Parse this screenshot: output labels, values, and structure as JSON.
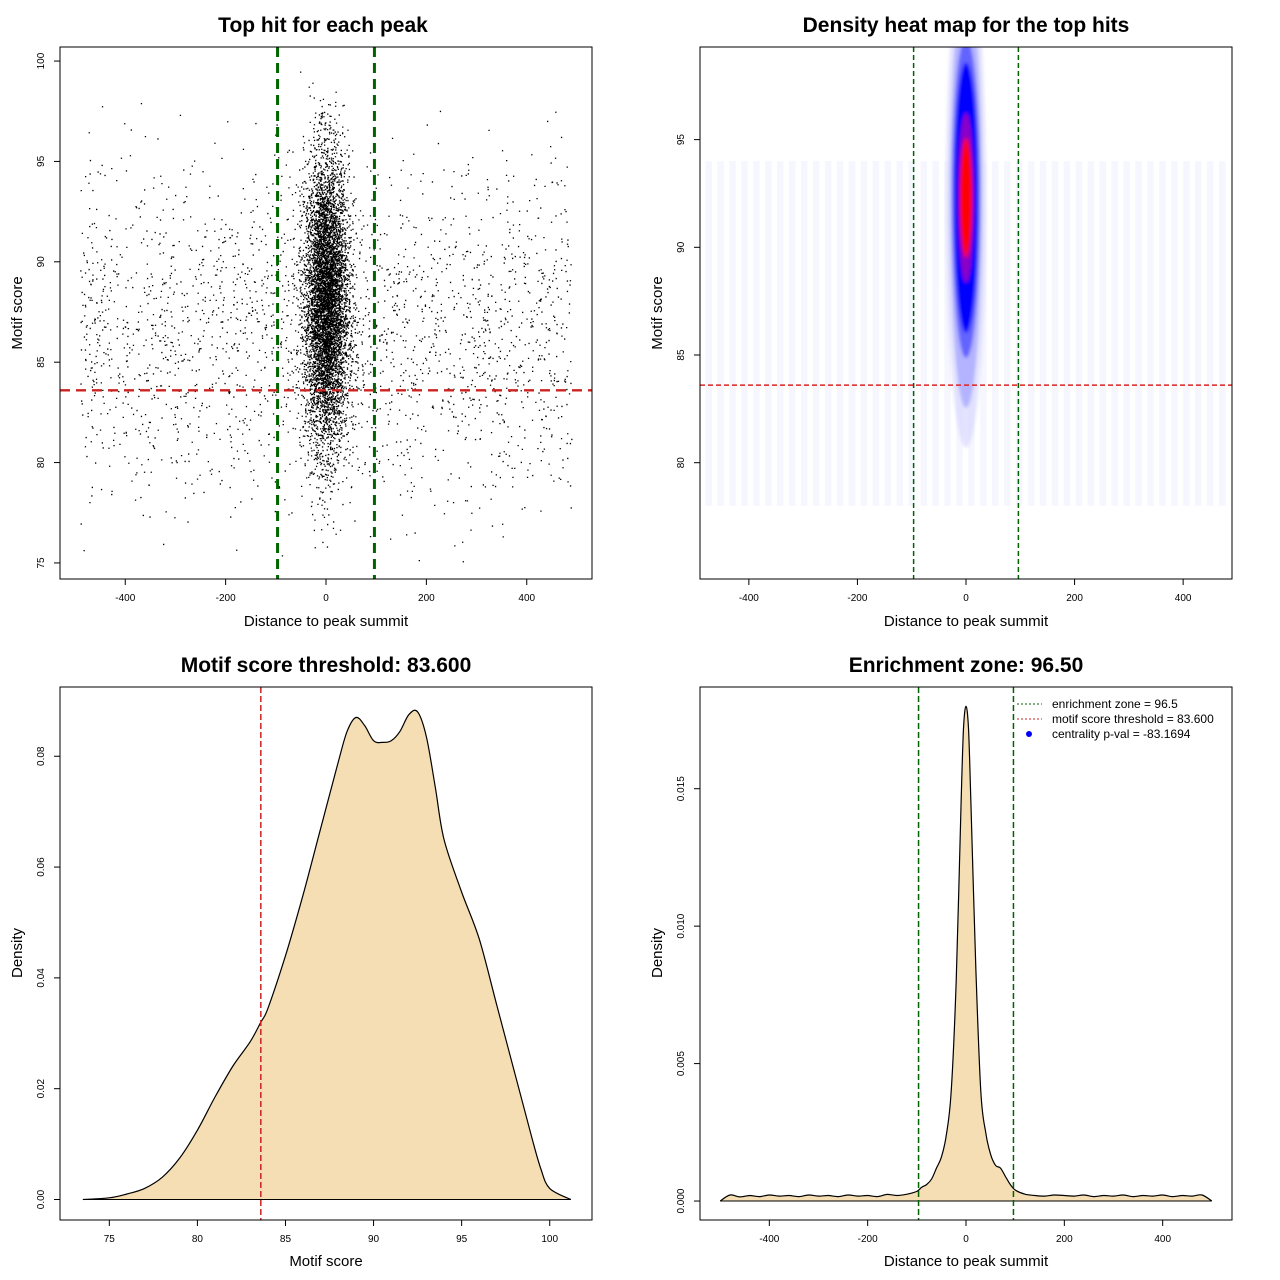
{
  "chart_data": [
    {
      "type": "scatter",
      "title": "Top hit for each peak",
      "xlabel": "Distance to peak summit",
      "ylabel": "Motif score",
      "xlim": [
        -530,
        530
      ],
      "ylim": [
        74.2,
        100.7
      ],
      "xticks": [
        -400,
        -200,
        0,
        200,
        400
      ],
      "yticks": [
        75,
        80,
        85,
        90,
        95,
        100
      ],
      "vlines": [
        -96.5,
        96.5
      ],
      "hline": 83.6,
      "vline_color": "#006400",
      "hline_color": "#cc2222",
      "central_cluster": {
        "x_center": 0,
        "x_sd": 22,
        "y_center": 88,
        "y_sd": 3.6
      },
      "background": {
        "x_range": [
          -490,
          490
        ],
        "y_range": [
          75,
          98
        ]
      }
    },
    {
      "type": "heatmap",
      "title": "Density heat map for the top hits",
      "xlabel": "Distance to peak summit",
      "ylabel": "Motif score",
      "xlim": [
        -490,
        490
      ],
      "ylim": [
        74.6,
        99.3
      ],
      "xticks": [
        -400,
        -200,
        0,
        200,
        400
      ],
      "yticks": [
        80,
        85,
        90,
        95
      ],
      "vlines": [
        -96.5,
        96.5
      ],
      "hline": 83.6,
      "hotspot": {
        "x": 0,
        "y": 92.3
      },
      "colors": {
        "low": "#ffffff",
        "mid": "#0000ff",
        "high": "#ff0000"
      }
    },
    {
      "type": "area",
      "title": "Motif score threshold: 83.600",
      "xlabel": "Motif score",
      "ylabel": "Density",
      "xlim": [
        72.2,
        102.4
      ],
      "ylim": [
        -0.0037,
        0.0925
      ],
      "xticks": [
        75,
        80,
        85,
        90,
        95,
        100
      ],
      "yticks": [
        0.0,
        0.02,
        0.04,
        0.06,
        0.08
      ],
      "ytick_labels": [
        "0.00",
        "0.02",
        "0.04",
        "0.06",
        "0.08"
      ],
      "vline": 83.6,
      "fill": "#f5deb3",
      "x": [
        73.5,
        75,
        76,
        77,
        78,
        79,
        80,
        81,
        82,
        83,
        83.6,
        84,
        85,
        86,
        87,
        88,
        88.5,
        89,
        89.5,
        90,
        90.5,
        91,
        91.5,
        92,
        92.5,
        93,
        93.5,
        94,
        95,
        96,
        97,
        98,
        99,
        99.5,
        100,
        101.2
      ],
      "y": [
        0.0,
        0.0003,
        0.001,
        0.002,
        0.004,
        0.0075,
        0.0125,
        0.0185,
        0.024,
        0.0285,
        0.032,
        0.0345,
        0.044,
        0.055,
        0.067,
        0.079,
        0.0845,
        0.087,
        0.0855,
        0.0828,
        0.0825,
        0.0828,
        0.0845,
        0.0875,
        0.088,
        0.0835,
        0.0745,
        0.065,
        0.0555,
        0.047,
        0.035,
        0.023,
        0.011,
        0.0055,
        0.002,
        0.0
      ]
    },
    {
      "type": "area",
      "title": "Enrichment zone: 96.50",
      "xlabel": "Distance to peak summit",
      "ylabel": "Density",
      "xlim": [
        -541,
        541
      ],
      "ylim": [
        -0.00069,
        0.0187
      ],
      "xticks": [
        -400,
        -200,
        0,
        200,
        400
      ],
      "yticks": [
        0.0,
        0.005,
        0.01,
        0.015
      ],
      "ytick_labels": [
        "0.000",
        "0.005",
        "0.010",
        "0.015"
      ],
      "vlines": [
        -96.5,
        96.5
      ],
      "fill": "#f5deb3",
      "x": [
        -500,
        -480,
        -460,
        -440,
        -420,
        -400,
        -380,
        -360,
        -340,
        -320,
        -300,
        -280,
        -260,
        -240,
        -220,
        -200,
        -180,
        -160,
        -140,
        -120,
        -100,
        -90,
        -80,
        -70,
        -60,
        -50,
        -40,
        -30,
        -20,
        -10,
        -5,
        0,
        5,
        10,
        20,
        30,
        40,
        50,
        60,
        70,
        80,
        90,
        100,
        120,
        140,
        160,
        180,
        200,
        220,
        240,
        260,
        280,
        300,
        320,
        340,
        360,
        380,
        400,
        420,
        440,
        460,
        480,
        500
      ],
      "y": [
        0.0,
        0.00022,
        0.00015,
        0.0002,
        0.00016,
        0.00022,
        0.00018,
        0.0002,
        0.00016,
        0.00022,
        0.00018,
        0.0002,
        0.00016,
        0.00022,
        0.00018,
        0.0002,
        0.00016,
        0.00024,
        0.0002,
        0.00025,
        0.00035,
        0.0005,
        0.0006,
        0.0008,
        0.0012,
        0.0016,
        0.0024,
        0.004,
        0.008,
        0.0145,
        0.0172,
        0.018,
        0.0172,
        0.0145,
        0.0085,
        0.004,
        0.0025,
        0.0017,
        0.0013,
        0.0012,
        0.0009,
        0.0006,
        0.0004,
        0.00025,
        0.0002,
        0.00018,
        0.00022,
        0.0002,
        0.00018,
        0.00022,
        0.00016,
        0.0002,
        0.00018,
        0.00022,
        0.00016,
        0.0002,
        0.00018,
        0.00022,
        0.00016,
        0.0002,
        0.00018,
        0.00022,
        0.0
      ]
    }
  ],
  "legend": {
    "items": [
      {
        "label": "enrichment zone = 96.5",
        "color": "#006400",
        "kind": "line"
      },
      {
        "label": "motif score threshold = 83.600",
        "color": "#cc2222",
        "kind": "line"
      },
      {
        "label": "centrality p-val = -83.1694",
        "color": "#0000ff",
        "kind": "point"
      }
    ]
  }
}
